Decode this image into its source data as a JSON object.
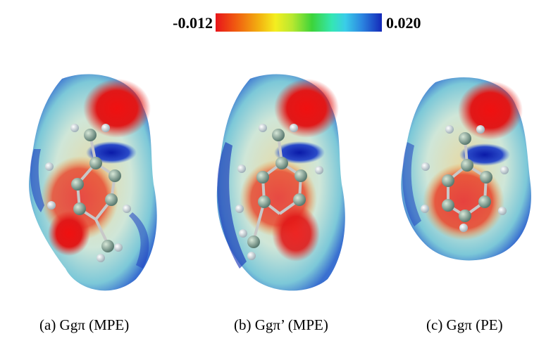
{
  "colorbar": {
    "min_label": "-0.012",
    "max_label": "0.020",
    "colors": [
      "#e8141a",
      "#f3b010",
      "#f4ee20",
      "#3cd43a",
      "#3acde8",
      "#1428b8"
    ]
  },
  "panels": [
    {
      "caption": "(a) Ggπ (MPE)"
    },
    {
      "caption": "(b) Ggπ’ (MPE)"
    },
    {
      "caption": "(c) Ggπ (PE)"
    }
  ]
}
